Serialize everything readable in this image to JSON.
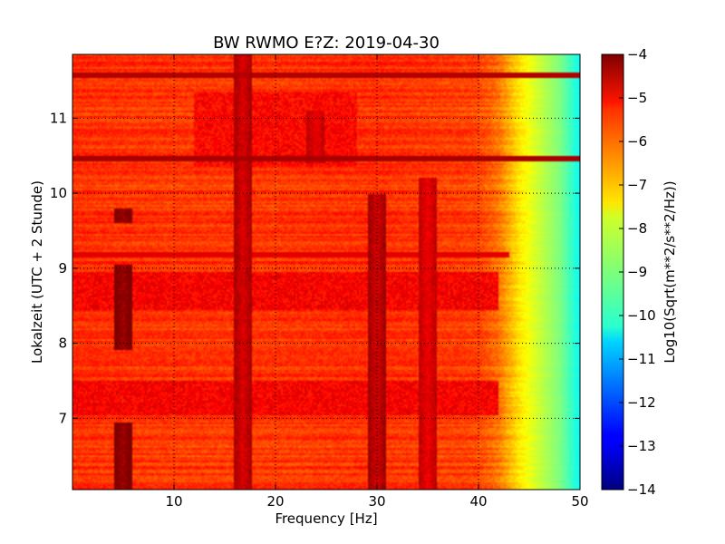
{
  "chart_data": {
    "type": "heatmap",
    "title": "BW RWMO E?Z: 2019-04-30",
    "xlabel": "Frequency [Hz]",
    "ylabel": "Lokalzeit (UTC + 2 Stunde)",
    "colorbar_label": "Log10(Sqrt(m**2/s**2/Hz))",
    "xlim": [
      0,
      50
    ],
    "ylim": [
      11.85,
      6.05
    ],
    "y_inverted": true,
    "x_ticks": [
      10,
      20,
      30,
      40,
      50
    ],
    "x_tick_labels": [
      "10",
      "20",
      "30",
      "40",
      "50"
    ],
    "y_ticks": [
      7,
      8,
      9,
      10,
      11
    ],
    "y_tick_labels": [
      "7",
      "8",
      "9",
      "10",
      "11"
    ],
    "grid": "dotted",
    "colormap": "jet",
    "colorbar_range": [
      -14,
      -4
    ],
    "colorbar_ticks": [
      -4,
      -5,
      -6,
      -7,
      -8,
      -9,
      -10,
      -11,
      -12,
      -13,
      -14
    ],
    "colorbar_tick_labels": [
      "−4",
      "−5",
      "−6",
      "−7",
      "−8",
      "−9",
      "−10",
      "−11",
      "−12",
      "−13",
      "−14"
    ],
    "spectral_profile": {
      "frequencies": [
        0,
        10,
        20,
        30,
        40,
        42,
        44,
        46,
        48,
        50
      ],
      "values": [
        -5.7,
        -5.8,
        -5.8,
        -5.7,
        -5.9,
        -6.4,
        -7.5,
        -8.3,
        -9.0,
        -10.2
      ]
    },
    "vertical_features": [
      {
        "freq": 5.0,
        "level": -4.3,
        "times": [
          [
            6.05,
            6.95
          ],
          [
            7.9,
            9.05
          ],
          [
            9.6,
            9.8
          ]
        ]
      },
      {
        "freq": 16.8,
        "level": -4.9,
        "times": [
          [
            6.05,
            11.85
          ]
        ]
      },
      {
        "freq": 30.0,
        "level": -4.8,
        "times": [
          [
            6.05,
            10.0
          ]
        ]
      },
      {
        "freq": 35.0,
        "level": -5.1,
        "times": [
          [
            6.05,
            10.2
          ]
        ]
      },
      {
        "freq": 24.0,
        "level": -5.1,
        "times": [
          [
            10.4,
            11.1
          ]
        ]
      }
    ],
    "horizontal_features": [
      {
        "time": 9.18,
        "level": -5.0,
        "fmin": 0,
        "fmax": 43
      },
      {
        "time": 10.45,
        "level": -4.4,
        "fmin": 0,
        "fmax": 50
      },
      {
        "time": 11.57,
        "level": -4.5,
        "fmin": 0,
        "fmax": 50
      }
    ],
    "active_bands": [
      {
        "tmin": 7.05,
        "tmax": 7.5,
        "level": -5.2
      },
      {
        "tmin": 8.45,
        "tmax": 8.95,
        "level": -5.2
      },
      {
        "tmin": 10.35,
        "tmax": 11.35,
        "level": -5.3,
        "fmin": 12,
        "fmax": 28
      }
    ]
  }
}
